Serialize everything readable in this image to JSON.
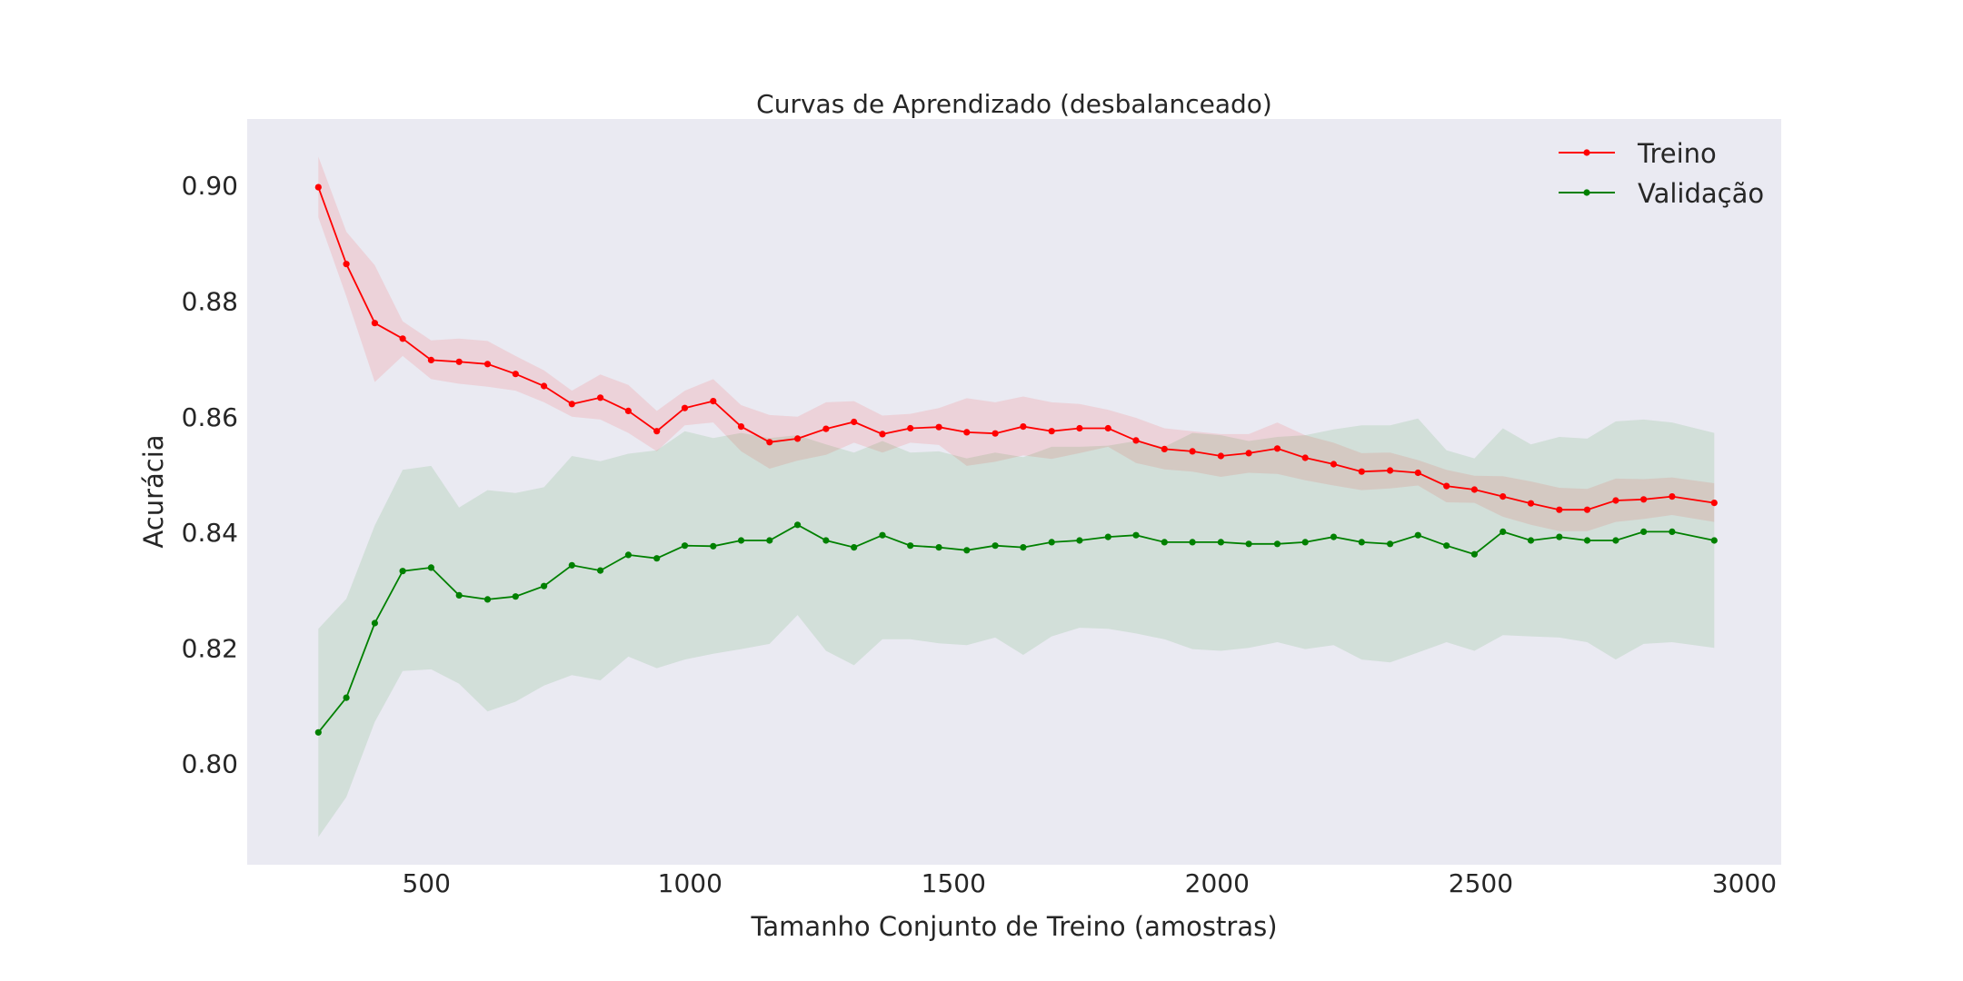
{
  "chart_data": {
    "type": "line",
    "title": "Curvas de Aprendizado (desbalanceado)",
    "xlabel": "Tamanho Conjunto de Treino (amostras)",
    "ylabel": "Acurácia",
    "xlim": [
      160,
      3070
    ],
    "ylim": [
      0.7825,
      0.9115
    ],
    "x_ticks": [
      500,
      1000,
      1500,
      2000,
      2500,
      3000
    ],
    "x_tick_labels": [
      "500",
      "1000",
      "1500",
      "2000",
      "2500",
      "3000"
    ],
    "y_ticks": [
      0.8,
      0.82,
      0.84,
      0.86,
      0.88,
      0.9
    ],
    "y_tick_labels": [
      "0.80",
      "0.82",
      "0.84",
      "0.86",
      "0.88",
      "0.90"
    ],
    "grid": false,
    "legend_position": "top-right",
    "background_color": "#eaeaf2",
    "x": [
      295,
      348,
      402,
      455,
      509,
      562,
      616,
      669,
      723,
      776,
      830,
      883,
      937,
      990,
      1044,
      1097,
      1151,
      1204,
      1258,
      1311,
      1365,
      1418,
      1472,
      1525,
      1579,
      1632,
      1686,
      1739,
      1793,
      1846,
      1900,
      1953,
      2007,
      2060,
      2114,
      2167,
      2221,
      2274,
      2328,
      2381,
      2435,
      2488,
      2542,
      2595,
      2649,
      2702,
      2756,
      2809,
      2863,
      2943
    ],
    "series": [
      {
        "name": "Treino",
        "color": "#ff0000",
        "values": [
          0.8997,
          0.8864,
          0.8762,
          0.8735,
          0.8698,
          0.8695,
          0.8691,
          0.8674,
          0.8653,
          0.8622,
          0.8633,
          0.861,
          0.8575,
          0.8615,
          0.8627,
          0.8583,
          0.8556,
          0.8562,
          0.8579,
          0.8591,
          0.857,
          0.858,
          0.8582,
          0.8573,
          0.8571,
          0.8583,
          0.8575,
          0.858,
          0.858,
          0.8559,
          0.8544,
          0.854,
          0.8532,
          0.8537,
          0.8545,
          0.8529,
          0.8518,
          0.8505,
          0.8507,
          0.8503,
          0.848,
          0.8474,
          0.8462,
          0.845,
          0.8439,
          0.8439,
          0.8455,
          0.8457,
          0.8462,
          0.8451
        ],
        "upper": [
          0.905,
          0.892,
          0.8862,
          0.8765,
          0.8732,
          0.8735,
          0.8731,
          0.8705,
          0.868,
          0.8645,
          0.8673,
          0.8655,
          0.861,
          0.8645,
          0.8665,
          0.862,
          0.8603,
          0.86,
          0.8625,
          0.8627,
          0.8602,
          0.8605,
          0.8615,
          0.8632,
          0.8625,
          0.8635,
          0.8625,
          0.8622,
          0.8612,
          0.8598,
          0.858,
          0.8575,
          0.857,
          0.857,
          0.859,
          0.8568,
          0.8555,
          0.8537,
          0.8538,
          0.8525,
          0.8508,
          0.8498,
          0.8497,
          0.8488,
          0.8477,
          0.8475,
          0.8493,
          0.8492,
          0.8495,
          0.8485
        ],
        "lower": [
          0.8945,
          0.8808,
          0.866,
          0.8705,
          0.8665,
          0.8657,
          0.8652,
          0.8645,
          0.8625,
          0.86,
          0.8595,
          0.8572,
          0.854,
          0.8585,
          0.859,
          0.854,
          0.851,
          0.8524,
          0.8534,
          0.8555,
          0.8538,
          0.8555,
          0.8551,
          0.8515,
          0.8522,
          0.8533,
          0.8527,
          0.8537,
          0.8548,
          0.852,
          0.8509,
          0.8505,
          0.8496,
          0.8503,
          0.8501,
          0.849,
          0.8481,
          0.8473,
          0.8476,
          0.8481,
          0.8452,
          0.8451,
          0.8427,
          0.8413,
          0.8402,
          0.8402,
          0.8418,
          0.8423,
          0.843,
          0.8418
        ]
      },
      {
        "name": "Validação",
        "color": "#008000",
        "values": [
          0.8054,
          0.8114,
          0.8243,
          0.8333,
          0.8339,
          0.8291,
          0.8284,
          0.8289,
          0.8307,
          0.8343,
          0.8334,
          0.8361,
          0.8355,
          0.8377,
          0.8376,
          0.8386,
          0.8386,
          0.8413,
          0.8386,
          0.8374,
          0.8395,
          0.8377,
          0.8374,
          0.8369,
          0.8377,
          0.8374,
          0.8383,
          0.8386,
          0.8392,
          0.8395,
          0.8383,
          0.8383,
          0.8383,
          0.838,
          0.838,
          0.8383,
          0.8392,
          0.8383,
          0.838,
          0.8395,
          0.8377,
          0.8362,
          0.8401,
          0.8386,
          0.8392,
          0.8386,
          0.8386,
          0.8401,
          0.8401,
          0.8386
        ],
        "upper": [
          0.8233,
          0.8285,
          0.8412,
          0.8508,
          0.8515,
          0.8443,
          0.8473,
          0.8468,
          0.8478,
          0.8532,
          0.8523,
          0.8536,
          0.8542,
          0.8575,
          0.8563,
          0.8572,
          0.8563,
          0.8568,
          0.8552,
          0.8538,
          0.8558,
          0.8538,
          0.854,
          0.8528,
          0.8538,
          0.853,
          0.8548,
          0.8548,
          0.855,
          0.8558,
          0.8548,
          0.8572,
          0.8568,
          0.8558,
          0.8565,
          0.8568,
          0.8578,
          0.8585,
          0.8585,
          0.8597,
          0.8542,
          0.8528,
          0.858,
          0.8552,
          0.8565,
          0.8562,
          0.8592,
          0.8595,
          0.859,
          0.8572
        ],
        "lower": [
          0.7873,
          0.7942,
          0.8072,
          0.816,
          0.8163,
          0.8138,
          0.809,
          0.8107,
          0.8135,
          0.8153,
          0.8144,
          0.8185,
          0.8165,
          0.818,
          0.819,
          0.8198,
          0.8207,
          0.8257,
          0.8195,
          0.817,
          0.8215,
          0.8215,
          0.8208,
          0.8205,
          0.8218,
          0.8188,
          0.822,
          0.8235,
          0.8233,
          0.8225,
          0.8215,
          0.8198,
          0.8195,
          0.82,
          0.821,
          0.8198,
          0.8205,
          0.818,
          0.8175,
          0.8192,
          0.821,
          0.8195,
          0.8222,
          0.822,
          0.8218,
          0.821,
          0.818,
          0.8207,
          0.821,
          0.82
        ]
      }
    ]
  }
}
